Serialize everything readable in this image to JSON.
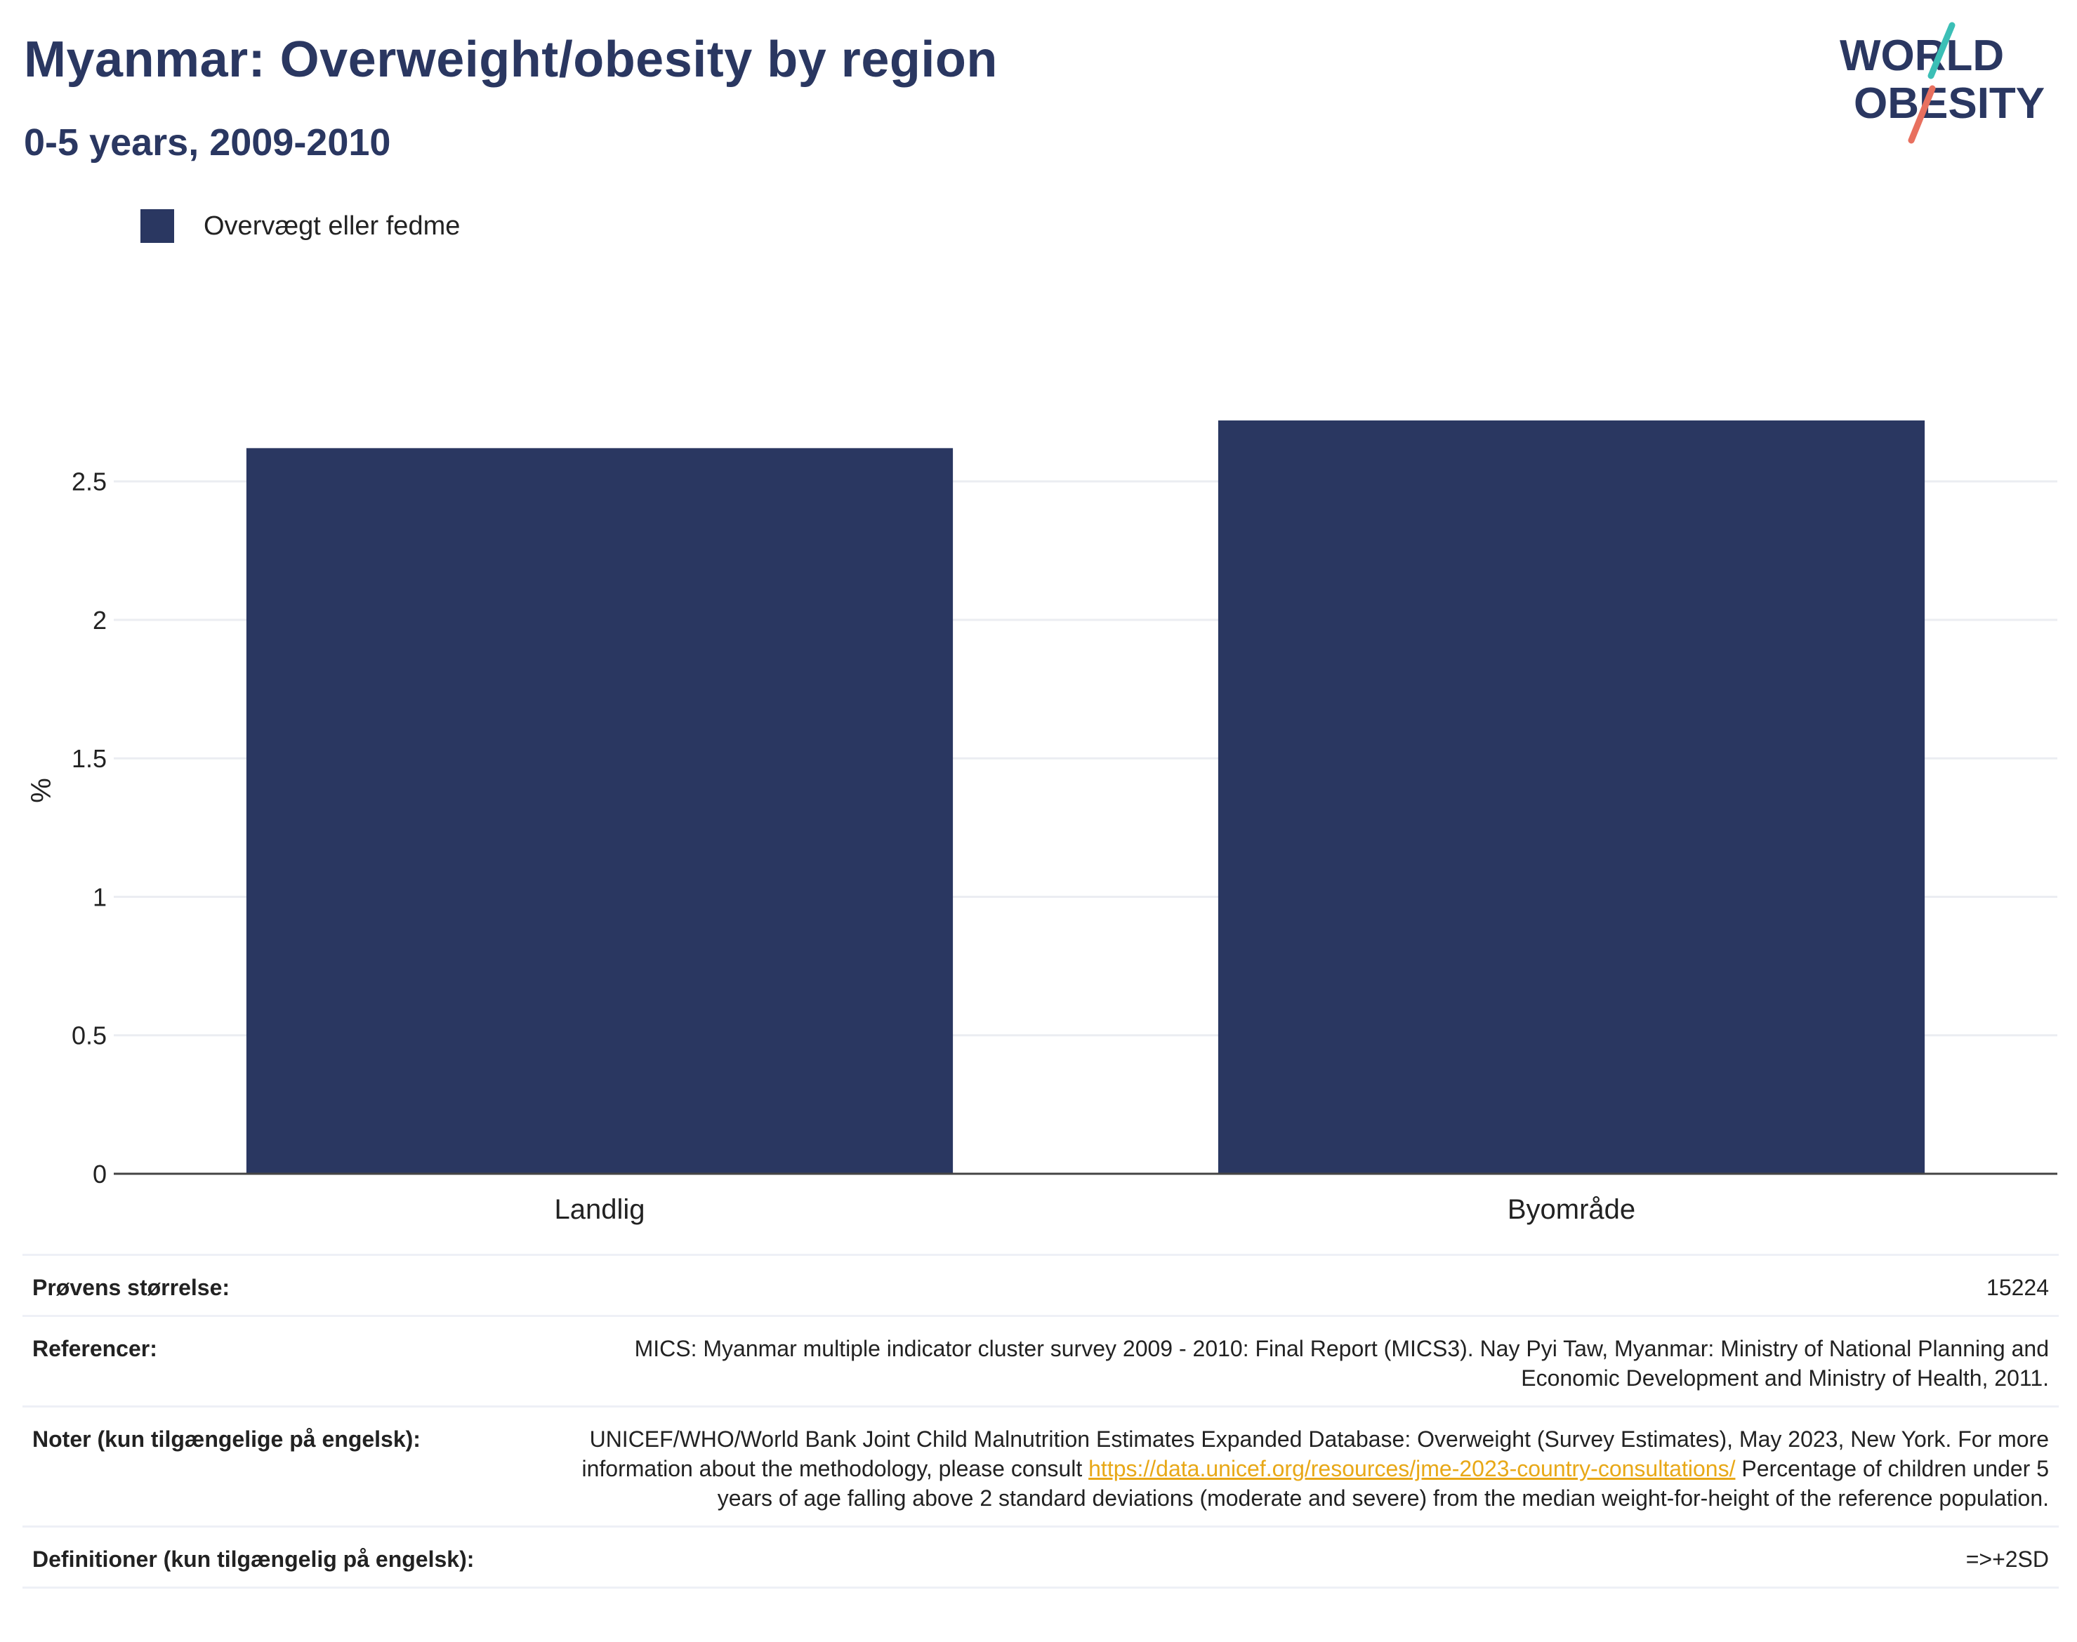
{
  "header": {
    "title": "Myanmar: Overweight/obesity by region",
    "subtitle": "0-5 years, 2009-2010"
  },
  "logo": {
    "line1": "WORLD",
    "line2": "OBESITY",
    "accent_teal": "#3bbfb6",
    "accent_coral": "#e8705f"
  },
  "colors": {
    "bar": "#2a3761",
    "title": "#2a3761",
    "link": "#e8a817"
  },
  "chart_data": {
    "type": "bar",
    "categories": [
      "Landlig",
      "Byområde"
    ],
    "series": [
      {
        "name": "Overvægt eller fedme",
        "values": [
          2.62,
          2.72
        ]
      }
    ],
    "ylabel": "%",
    "xlabel": "",
    "ylim": [
      0,
      2.92
    ],
    "yticks": [
      0,
      0.5,
      1,
      1.5,
      2,
      2.5
    ],
    "ytick_labels": [
      "0",
      "0.5",
      "1",
      "1.5",
      "2",
      "2.5"
    ],
    "grid": true,
    "legend_position": "top-left"
  },
  "info": {
    "sample_size_label": "Prøvens størrelse:",
    "sample_size_value": "15224",
    "references_label": "Referencer:",
    "references_value": "MICS: Myanmar multiple indicator cluster survey 2009 - 2010: Final Report (MICS3). Nay Pyi Taw, Myanmar: Ministry of National Planning and Economic Development and Ministry of Health, 2011.",
    "notes_label": "Noter (kun tilgængelige på engelsk):",
    "notes_text_before": "UNICEF/WHO/World Bank Joint Child Malnutrition Estimates Expanded Database: Overweight (Survey Estimates), May 2023, New York. For more information about the methodology, please consult ",
    "notes_link": "https://data.unicef.org/resources/jme-2023-country-consultations/",
    "notes_text_after": " Percentage of children under 5 years of age falling above 2 standard deviations (moderate and severe) from the median weight-for-height of the reference population.",
    "definitions_label": "Definitioner (kun tilgængelig på engelsk):",
    "definitions_value": "=>+2SD"
  }
}
